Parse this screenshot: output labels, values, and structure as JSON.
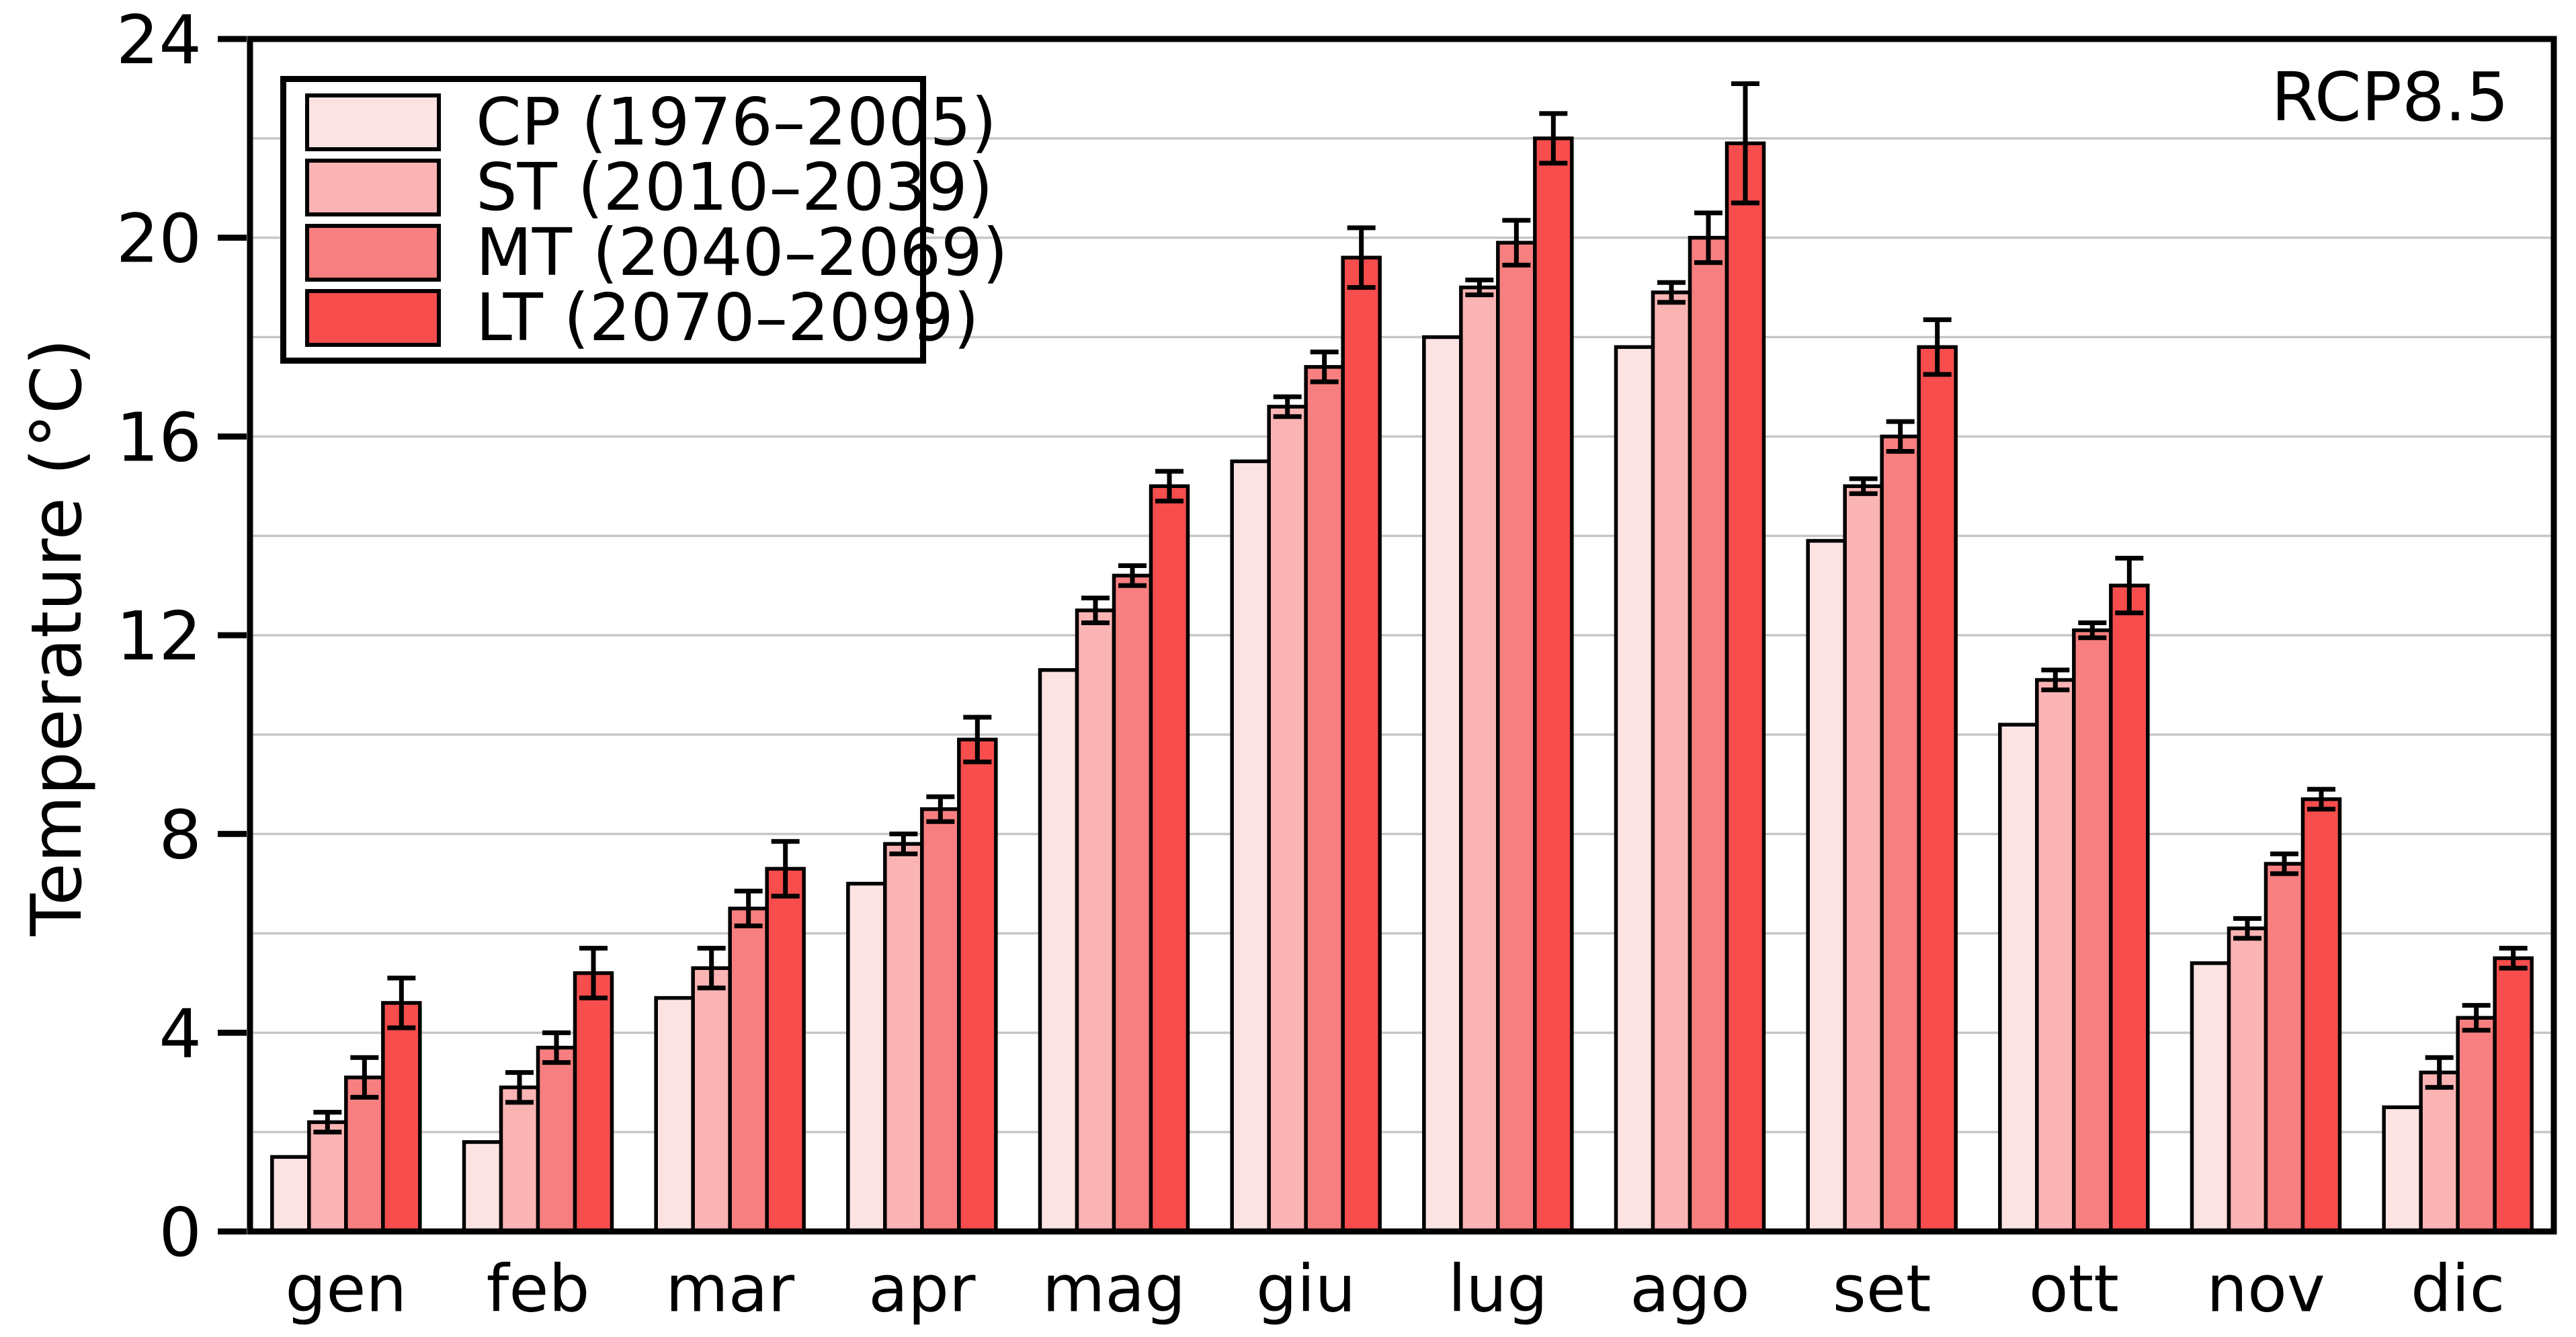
{
  "figure": {
    "background": "#ffffff",
    "text_color": "#000000",
    "grid_color": "#c6c6c6",
    "bar_outline_color": "#000000"
  },
  "chart_data": {
    "type": "bar",
    "title": "",
    "xlabel": "",
    "ylabel": "Temperature (°C)",
    "annotation": "RCP8.5",
    "legend_position": "upper-left",
    "grid": true,
    "grid_step": 2,
    "ylim": [
      0,
      24
    ],
    "yticks": [
      0,
      4,
      8,
      12,
      16,
      20,
      24
    ],
    "categories": [
      "gen",
      "feb",
      "mar",
      "apr",
      "mag",
      "giu",
      "lug",
      "ago",
      "set",
      "ott",
      "nov",
      "dic"
    ],
    "series": [
      {
        "name": "CP (1976–2005)",
        "color": "#fce3e3",
        "values": [
          1.5,
          1.8,
          4.7,
          7.0,
          11.3,
          15.5,
          18.0,
          17.8,
          13.9,
          10.2,
          5.4,
          2.5
        ],
        "errors": null
      },
      {
        "name": "ST (2010–2039)",
        "color": "#fab4b4",
        "values": [
          2.2,
          2.9,
          5.3,
          7.8,
          12.5,
          16.6,
          19.0,
          18.9,
          15.0,
          11.1,
          6.1,
          3.2
        ],
        "errors": [
          0.2,
          0.3,
          0.4,
          0.2,
          0.25,
          0.2,
          0.15,
          0.2,
          0.15,
          0.2,
          0.2,
          0.3
        ]
      },
      {
        "name": "MT (2040–2069)",
        "color": "#f87f7f",
        "values": [
          3.1,
          3.7,
          6.5,
          8.5,
          13.2,
          17.4,
          19.9,
          20.0,
          16.0,
          12.1,
          7.4,
          4.3
        ],
        "errors": [
          0.4,
          0.3,
          0.35,
          0.25,
          0.2,
          0.3,
          0.45,
          0.5,
          0.3,
          0.15,
          0.2,
          0.25
        ]
      },
      {
        "name": "LT (2070–2099)",
        "color": "#f74d4d",
        "values": [
          4.6,
          5.2,
          7.3,
          9.9,
          15.0,
          19.6,
          22.0,
          21.9,
          17.8,
          13.0,
          8.7,
          5.5
        ],
        "errors": [
          0.5,
          0.5,
          0.55,
          0.45,
          0.3,
          0.6,
          0.5,
          1.2,
          0.55,
          0.55,
          0.2,
          0.2
        ]
      }
    ]
  }
}
